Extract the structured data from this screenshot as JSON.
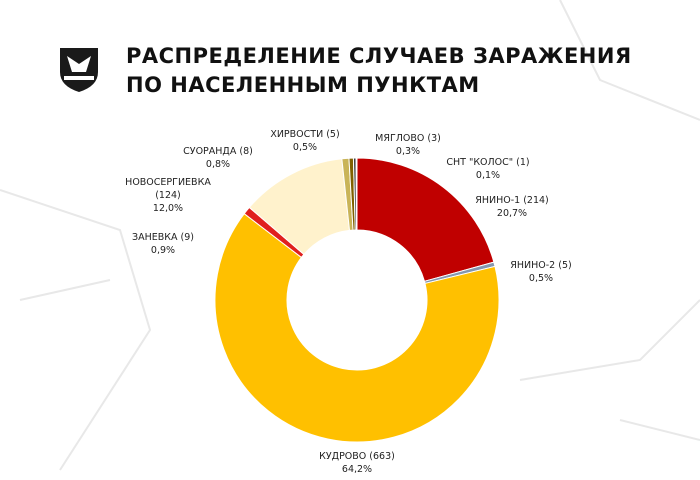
{
  "chart_data": {
    "type": "pie",
    "donut": true,
    "title": "РАСПРЕДЕЛЕНИЕ СЛУЧАЕВ ЗАРАЖЕНИЯ ПО НАСЕЛЕННЫМ ПУНКТАМ",
    "categories": [
      "ЯНИНО-1 (214)",
      "ЯНИНО-2 (5)",
      "КУДРОВО (663)",
      "ЗАНЕВКА (9)",
      "НОВОСЕРГИЕВКА (124)",
      "СУОРАНДА (8)",
      "ХИРВОСТИ (5)",
      "МЯГЛОВО (3)",
      "СНТ \"КОЛОС\" (1)"
    ],
    "values": [
      20.7,
      0.5,
      64.2,
      0.9,
      12.0,
      0.8,
      0.5,
      0.3,
      0.1
    ],
    "value_labels": [
      "20,7%",
      "0,5%",
      "64,2%",
      "0,9%",
      "12,0%",
      "0,8%",
      "0,5%",
      "0,3%",
      "0,1%"
    ],
    "colors": [
      "#c00000",
      "#8497b0",
      "#ffc000",
      "#e0201e",
      "#fff2cc",
      "#c9b458",
      "#7f6000",
      "#404040",
      "#595959"
    ]
  }
}
